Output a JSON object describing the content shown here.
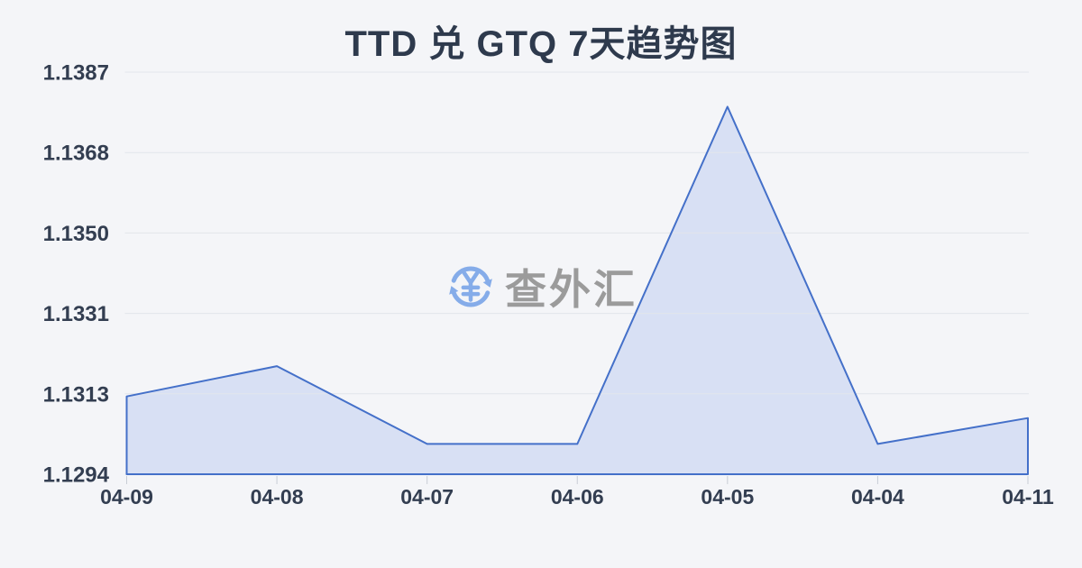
{
  "page": {
    "background": "#f4f5f8",
    "title": "TTD 兑 GTQ 7天趋势图",
    "title_color": "#2e3a4d"
  },
  "watermark": {
    "text": "查外汇",
    "icon": "currency-exchange-icon",
    "text_color": "#9b9b9b",
    "icon_color": "#85ace9"
  },
  "chart_data": {
    "type": "area",
    "title": "TTD 兑 GTQ 7天趋势图",
    "categories": [
      "04-09",
      "04-08",
      "04-07",
      "04-06",
      "04-05",
      "04-04",
      "04-11"
    ],
    "values": [
      1.1312,
      1.1319,
      1.1301,
      1.1301,
      1.1379,
      1.1301,
      1.1307
    ],
    "series_name": "TTD/GTQ",
    "xlabel": "",
    "ylabel": "",
    "ylim": [
      1.1294,
      1.1387
    ],
    "y_tick_labels": [
      "1.1387",
      "1.1368",
      "1.1350",
      "1.1331",
      "1.1313",
      "1.1294"
    ],
    "grid": true,
    "legend": false,
    "colors": {
      "line": "#4470c9",
      "fill": "#d8e0f4",
      "grid": "#e2e5eb",
      "tick": "#c9cdd5",
      "axis_text": "#333e51"
    }
  }
}
